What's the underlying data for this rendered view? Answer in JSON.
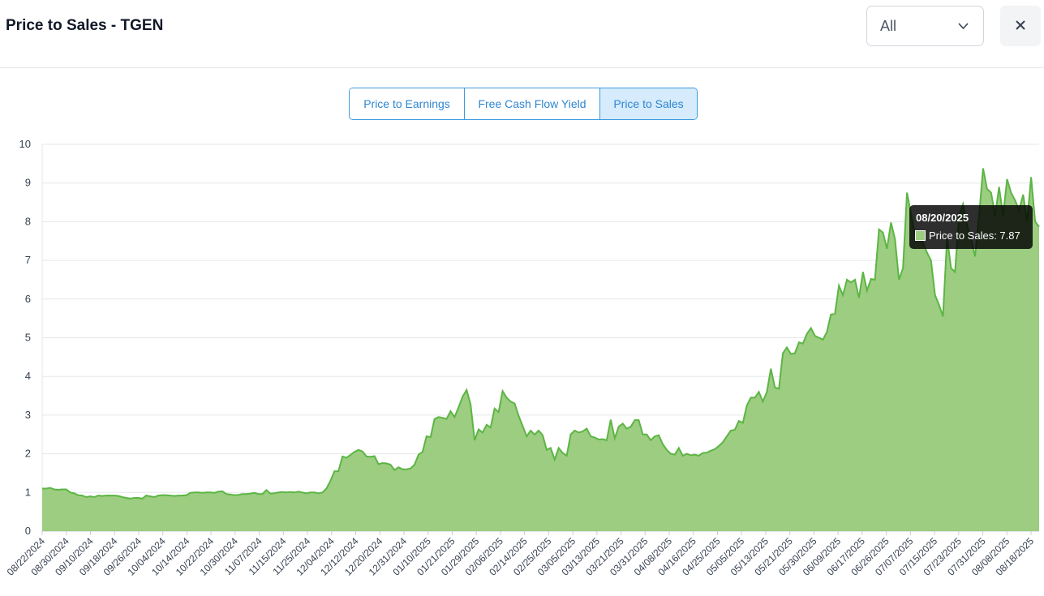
{
  "header": {
    "title": "Price to Sales - TGEN",
    "range_value": "All",
    "close_symbol": "✕"
  },
  "tabs": [
    {
      "label": "Price to Earnings",
      "active": false
    },
    {
      "label": "Free Cash Flow Yield",
      "active": false
    },
    {
      "label": "Price to Sales",
      "active": true
    }
  ],
  "colors": {
    "series_line": "#5cb544",
    "series_fill": "#9ccd81",
    "tab_active_bg": "#d6ebfb",
    "tab_border": "#3b9ae1"
  },
  "tooltip": {
    "date": "08/20/2025",
    "label": "Price to Sales: 7.87"
  },
  "chart_data": {
    "type": "area",
    "title": "",
    "xlabel": "",
    "ylabel": "",
    "ylim": [
      0,
      10
    ],
    "yticks": [
      0,
      1,
      2,
      3,
      4,
      5,
      6,
      7,
      8,
      9,
      10
    ],
    "grid": true,
    "legend": "none",
    "x_tick_labels": [
      "08/22/2024",
      "08/30/2024",
      "09/10/2024",
      "09/18/2024",
      "09/26/2024",
      "10/04/2024",
      "10/14/2024",
      "10/22/2024",
      "10/30/2024",
      "11/07/2024",
      "11/15/2024",
      "11/25/2024",
      "12/04/2024",
      "12/12/2024",
      "12/20/2024",
      "12/31/2024",
      "01/10/2025",
      "01/21/2025",
      "01/29/2025",
      "02/06/2025",
      "02/14/2025",
      "02/25/2025",
      "03/05/2025",
      "03/13/2025",
      "03/21/2025",
      "03/31/2025",
      "04/08/2025",
      "04/16/2025",
      "04/25/2025",
      "05/05/2025",
      "05/13/2025",
      "05/21/2025",
      "05/30/2025",
      "06/09/2025",
      "06/17/2025",
      "06/26/2025",
      "07/07/2025",
      "07/15/2025",
      "07/23/2025",
      "07/31/2025",
      "08/08/2025",
      "08/18/2025"
    ],
    "series": [
      {
        "name": "Price to Sales",
        "values": [
          1.1,
          1.1,
          1.12,
          1.08,
          1.07,
          1.08,
          1.08,
          1.0,
          0.98,
          0.93,
          0.92,
          0.88,
          0.9,
          0.88,
          0.92,
          0.91,
          0.92,
          0.92,
          0.92,
          0.91,
          0.88,
          0.86,
          0.84,
          0.86,
          0.86,
          0.84,
          0.92,
          0.9,
          0.88,
          0.92,
          0.93,
          0.93,
          0.92,
          0.91,
          0.92,
          0.92,
          0.93,
          0.99,
          1.0,
          1.0,
          0.99,
          1.0,
          1.0,
          0.99,
          1.02,
          1.03,
          0.96,
          0.95,
          0.93,
          0.94,
          0.96,
          0.96,
          0.97,
          0.99,
          0.96,
          0.96,
          1.06,
          0.97,
          0.98,
          1.0,
          1.01,
          1.0,
          1.01,
          1.0,
          1.02,
          1.0,
          0.98,
          1.0,
          1.0,
          0.98,
          1.0,
          1.1,
          1.3,
          1.55,
          1.55,
          1.93,
          1.9,
          1.97,
          2.05,
          2.1,
          2.06,
          1.93,
          1.92,
          1.94,
          1.73,
          1.76,
          1.75,
          1.72,
          1.58,
          1.65,
          1.6,
          1.6,
          1.62,
          1.72,
          1.98,
          2.05,
          2.45,
          2.43,
          2.9,
          2.95,
          2.93,
          2.9,
          3.1,
          2.95,
          3.2,
          3.48,
          3.65,
          3.28,
          2.35,
          2.63,
          2.55,
          2.75,
          2.68,
          3.17,
          3.08,
          3.62,
          3.45,
          3.35,
          3.3,
          2.98,
          2.72,
          2.45,
          2.6,
          2.5,
          2.6,
          2.48,
          2.1,
          2.15,
          1.85,
          2.15,
          2.02,
          1.95,
          2.5,
          2.6,
          2.55,
          2.58,
          2.65,
          2.45,
          2.42,
          2.37,
          2.38,
          2.35,
          2.88,
          2.4,
          2.7,
          2.78,
          2.65,
          2.7,
          2.87,
          2.87,
          2.5,
          2.5,
          2.35,
          2.45,
          2.48,
          2.25,
          2.1,
          2.0,
          1.98,
          2.15,
          1.95,
          2.0,
          1.96,
          1.98,
          1.95,
          2.02,
          2.03,
          2.08,
          2.12,
          2.2,
          2.3,
          2.45,
          2.6,
          2.62,
          2.85,
          2.8,
          3.25,
          3.45,
          3.45,
          3.6,
          3.35,
          3.6,
          4.2,
          3.72,
          3.68,
          4.6,
          4.75,
          4.58,
          4.6,
          4.88,
          4.85,
          5.1,
          5.25,
          5.05,
          5.0,
          4.95,
          5.15,
          5.6,
          5.62,
          6.35,
          6.1,
          6.5,
          6.43,
          6.5,
          6.03,
          6.7,
          6.22,
          6.52,
          6.5,
          7.8,
          7.72,
          7.3,
          7.98,
          7.55,
          6.5,
          6.8,
          8.75,
          8.2,
          7.65,
          7.55,
          7.45,
          7.2,
          7.0,
          6.1,
          5.85,
          5.55,
          7.6,
          6.8,
          6.7,
          8.15,
          8.45,
          7.9,
          7.55,
          7.1,
          8.15,
          9.38,
          8.85,
          8.75,
          8.15,
          8.9,
          8.15,
          9.1,
          8.75,
          8.55,
          8.3,
          8.7,
          8.0,
          9.15,
          8.0,
          7.87
        ]
      }
    ]
  }
}
